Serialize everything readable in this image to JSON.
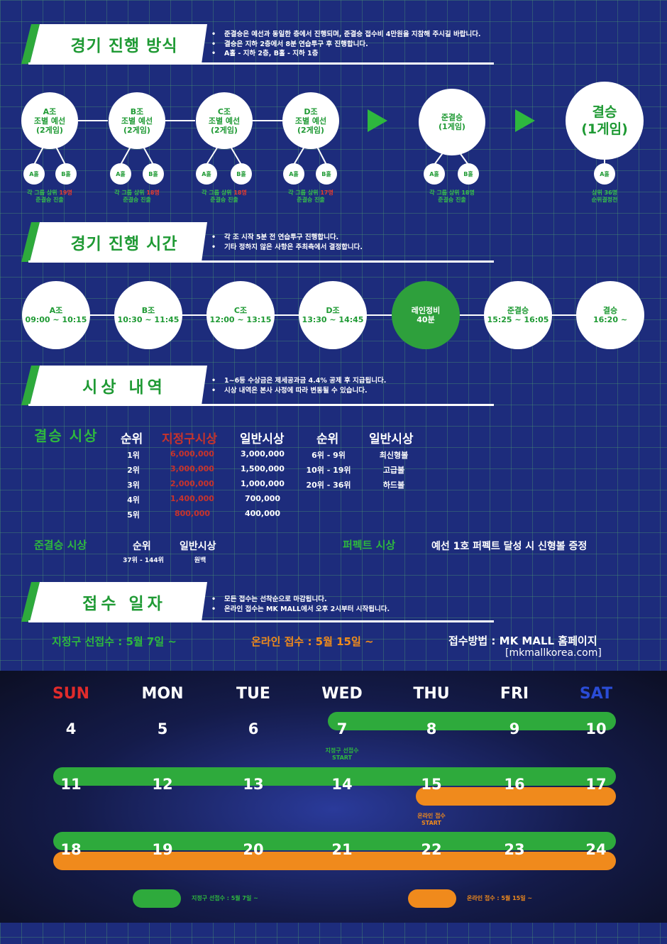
{
  "sections": {
    "format": {
      "title": "경기 진행 방식",
      "notes": [
        "준결승은 예선과 동일한 층에서 진행되며, 준결승 접수비 4만원을 지참해 주시길 바랍니다.",
        "결승은 지하 2층에서 8분 연습투구 후 진행합니다.",
        "A홀 - 지하 2층, B홀 - 지하 1층"
      ]
    },
    "time": {
      "title": "경기 진행 시간",
      "notes": [
        "각 조 시작 5분 전 연습투구 진행합니다.",
        "기타 정하지 않은 사항은 주최측에서 결정합니다."
      ]
    },
    "prize": {
      "title": "시상 내역",
      "notes": [
        "1~6등 수상금은 제세공과금 4.4% 공제 후 지급됩니다.",
        "시상 내역은 본사 사정에 따라 변동될 수 있습니다."
      ]
    },
    "entry": {
      "title": "접수 일자",
      "notes": [
        "모든 접수는 선착순으로 마감됩니다.",
        "온라인 접수는 MK MALL에서 오후 2시부터 시작됩니다."
      ]
    }
  },
  "bracket": {
    "groups": [
      {
        "line1": "A조",
        "line2": "조별 예선",
        "line3": "(2게임)",
        "hall_a": "A홀",
        "hall_b": "B홀",
        "q_pre": "각 그룹 상위 ",
        "q_num": "19명",
        "q_post": "준결승 진출"
      },
      {
        "line1": "B조",
        "line2": "조별 예선",
        "line3": "(2게임)",
        "hall_a": "A홀",
        "hall_b": "B홀",
        "q_pre": "각 그룹 상위 ",
        "q_num": "18명",
        "q_post": "준결승 진출"
      },
      {
        "line1": "C조",
        "line2": "조별 예선",
        "line3": "(2게임)",
        "hall_a": "A홀",
        "hall_b": "B홀",
        "q_pre": "각 그룹 상위 ",
        "q_num": "18명",
        "q_post": "준결승 진출"
      },
      {
        "line1": "D조",
        "line2": "조별 예선",
        "line3": "(2게임)",
        "hall_a": "A홀",
        "hall_b": "B홀",
        "q_pre": "각 그룹 상위 ",
        "q_num": "17명",
        "q_post": "준결승 진출"
      }
    ],
    "semi": {
      "line1": "준결승",
      "line2": "(1게임)",
      "hall_a": "A홀",
      "hall_b": "B홀",
      "q1": "각 그룹 상위 18명",
      "q2": "준결승 진출"
    },
    "final": {
      "line1": "결승",
      "line2": "(1게임)",
      "hall_a": "A홀",
      "q1": "상위 36명",
      "q2": "순위결정전"
    }
  },
  "timeline": [
    {
      "name": "A조",
      "time": "09:00 ~ 10:15"
    },
    {
      "name": "B조",
      "time": "10:30 ~ 11:45"
    },
    {
      "name": "C조",
      "time": "12:00 ~ 13:15"
    },
    {
      "name": "D조",
      "time": "13:30 ~ 14:45"
    },
    {
      "name": "레인정비",
      "time": "40분"
    },
    {
      "name": "준결승",
      "time": "15:25 ~ 16:05"
    },
    {
      "name": "결승",
      "time": "16:20 ~"
    }
  ],
  "prizes": {
    "final_label": "결승 시상",
    "headers": {
      "rank": "순위",
      "designated": "지정구시상",
      "general": "일반시상",
      "rank2": "순위",
      "general2": "일반시상"
    },
    "rows": [
      {
        "rank": "1위",
        "designated": "6,000,000",
        "general": "3,000,000"
      },
      {
        "rank": "2위",
        "designated": "3,000,000",
        "general": "1,500,000"
      },
      {
        "rank": "3위",
        "designated": "2,000,000",
        "general": "1,000,000"
      },
      {
        "rank": "4위",
        "designated": "1,400,000",
        "general": "700,000"
      },
      {
        "rank": "5위",
        "designated": "800,000",
        "general": "400,000"
      }
    ],
    "rows2": [
      {
        "rank": "6위 - 9위",
        "general": "최신형볼"
      },
      {
        "rank": "10위 - 19위",
        "general": "고급볼"
      },
      {
        "rank": "20위 - 36위",
        "general": "하드볼"
      }
    ],
    "semi_label": "준결승 시상",
    "semi_rank_h": "순위",
    "semi_general_h": "일반시상",
    "semi_rank": "37위 - 144위",
    "semi_general": "원백",
    "perfect_label": "퍼펙트 시상",
    "perfect_text": "예선 1호 퍼펙트 달성 시 신형볼 증정"
  },
  "entry": {
    "designated": "지정구 선접수 : 5월 7일 ~",
    "online": "온라인 접수 : 5월 15일 ~",
    "method": "접수방법 : MK MALL 홈페이지",
    "url": "[mkmallkorea.com]"
  },
  "calendar": {
    "days": [
      "SUN",
      "MON",
      "TUE",
      "WED",
      "THU",
      "FRI",
      "SAT"
    ],
    "weeks": [
      [
        "4",
        "5",
        "6",
        "7",
        "8",
        "9",
        "10"
      ],
      [
        "11",
        "12",
        "13",
        "14",
        "15",
        "16",
        "17"
      ],
      [
        "18",
        "19",
        "20",
        "21",
        "22",
        "23",
        "24"
      ]
    ],
    "cap_designated": [
      "지정구 선접수",
      "START"
    ],
    "cap_online": [
      "온라인 접수",
      "START"
    ],
    "legend_designated": "지정구 선접수 : 5월 7일 ~",
    "legend_online": "온라인 접수 : 5월 15일 ~"
  },
  "colors": {
    "green": "#2eaa3c",
    "orange": "#f08a1c",
    "red": "#e53b2f",
    "navy": "#1d2c7c",
    "sun": "#e02b2b",
    "sat": "#2a4cd6"
  }
}
